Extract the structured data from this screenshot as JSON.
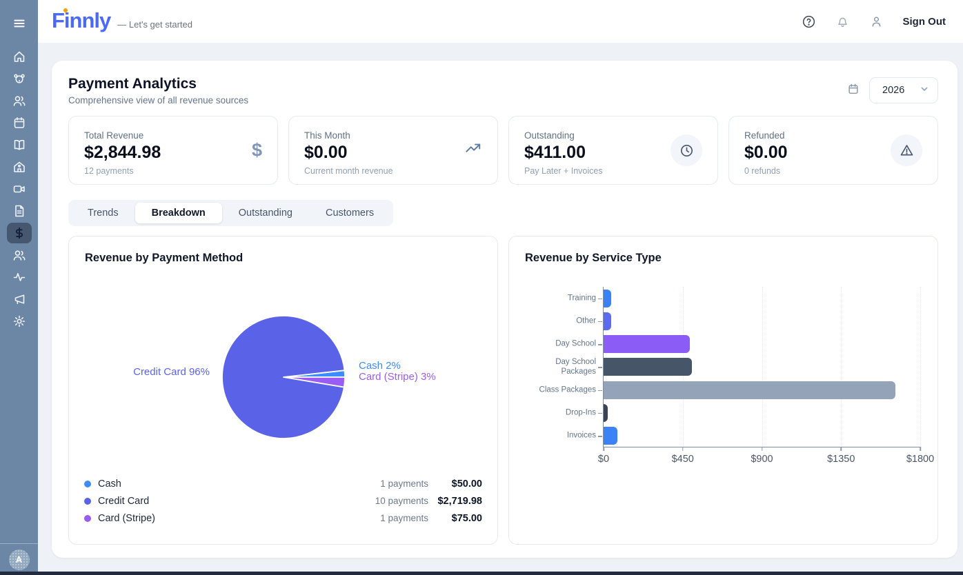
{
  "header": {
    "logo": "Finnly",
    "tagline": "— Let's get started",
    "sign_out": "Sign Out",
    "icons": [
      "help-icon",
      "bell-icon",
      "user-icon"
    ]
  },
  "sidebar": {
    "color": "#6c86a6",
    "icons": [
      "menu-icon",
      "home-icon",
      "pet-icon",
      "clients-icon",
      "calendar-icon",
      "book-icon",
      "school-icon",
      "video-icon",
      "document-icon",
      "payments-dollar-icon",
      "staff-icon",
      "activity-icon",
      "megaphone-icon",
      "settings-gear-icon"
    ],
    "active_item": "payments",
    "avatar_letter": "A"
  },
  "page": {
    "title": "Payment Analytics",
    "subtitle": "Comprehensive view of all revenue sources",
    "year": "2026"
  },
  "stats": [
    {
      "label": "Total Revenue",
      "value": "$2,844.98",
      "sub": "12 payments",
      "icon": "dollar-icon"
    },
    {
      "label": "This Month",
      "value": "$0.00",
      "sub": "Current month revenue",
      "icon": "trending-up-icon"
    },
    {
      "label": "Outstanding",
      "value": "$411.00",
      "sub": "Pay Later + Invoices",
      "icon": "clock-icon"
    },
    {
      "label": "Refunded",
      "value": "$0.00",
      "sub": "0 refunds",
      "icon": "alert-triangle-icon"
    }
  ],
  "tabs": [
    {
      "label": "Trends",
      "active": false
    },
    {
      "label": "Breakdown",
      "active": true
    },
    {
      "label": "Outstanding",
      "active": false
    },
    {
      "label": "Customers",
      "active": false
    }
  ],
  "chart_data": [
    {
      "type": "pie",
      "title": "Revenue by Payment Method",
      "slices": [
        {
          "label": "Cash",
          "percent": 2,
          "value": 50.0,
          "payments": "1 payments",
          "amount": "$50.00",
          "color": "#3d8bfd"
        },
        {
          "label": "Credit Card",
          "percent": 96,
          "value": 2719.98,
          "payments": "10 payments",
          "amount": "$2,719.98",
          "color": "#5a63e8"
        },
        {
          "label": "Card (Stripe)",
          "percent": 3,
          "value": 75.0,
          "payments": "1 payments",
          "amount": "$75.00",
          "color": "#9b5cf3"
        }
      ],
      "draw_order": [
        0,
        2,
        1
      ],
      "callout_labels": {
        "left": "Credit Card 96%",
        "right_top": "Cash 2%",
        "right_bottom": "Card (Stripe) 3%"
      },
      "legend_position": "bottom"
    },
    {
      "type": "bar",
      "title": "Revenue by Service Type",
      "orientation": "horizontal",
      "categories": [
        "Training",
        "Other",
        "Day School",
        "Day School Packages",
        "Class Packages",
        "Drop-Ins",
        "Invoices"
      ],
      "values": [
        45,
        45,
        490,
        500,
        1660,
        25,
        80
      ],
      "colors": [
        "#3b82f6",
        "#5b6cf0",
        "#8b5cf6",
        "#475569",
        "#94a3b8",
        "#3a4254",
        "#3b82f6"
      ],
      "xlim": [
        0,
        1800
      ],
      "xtick_values": [
        0,
        450,
        900,
        1350,
        1800
      ],
      "xtick_labels": [
        "$0",
        "$450",
        "$900",
        "$1350",
        "$1800"
      ],
      "grid": "dotted-vertical"
    }
  ]
}
